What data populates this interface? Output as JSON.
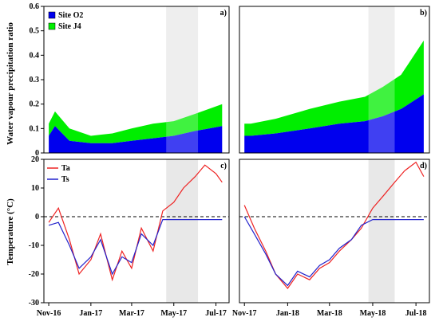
{
  "colors": {
    "site_o2": "#0000ee",
    "site_j4": "#00ee00",
    "ta": "#ee2222",
    "ts": "#2222cc",
    "shade": "#e8e8e8"
  },
  "ylabel_top": "Water vapour precipitation ratio",
  "ylabel_bottom": "Temperature (°C)",
  "chart_data": [
    {
      "panel": "a)",
      "type": "area",
      "stacked": true,
      "ylim": [
        0,
        0.6
      ],
      "yticks": [
        0,
        0.1,
        0.2,
        0.3,
        0.4,
        0.5,
        0.6
      ],
      "x_dates": [
        "2016-11-01",
        "2016-11-10",
        "2016-12-01",
        "2017-01-01",
        "2017-02-01",
        "2017-03-01",
        "2017-04-01",
        "2017-05-01",
        "2017-06-01",
        "2017-07-10"
      ],
      "series": [
        {
          "name": "Site O2",
          "values": [
            0.07,
            0.11,
            0.05,
            0.04,
            0.04,
            0.05,
            0.06,
            0.07,
            0.09,
            0.11
          ]
        },
        {
          "name": "Site J4",
          "values": [
            0.05,
            0.06,
            0.05,
            0.03,
            0.04,
            0.05,
            0.06,
            0.06,
            0.07,
            0.09
          ]
        }
      ],
      "legend": [
        "Site O2",
        "Site J4"
      ],
      "legend_position": "top-left",
      "shade_dates": [
        "2017-04-20",
        "2017-06-05"
      ]
    },
    {
      "panel": "b)",
      "type": "area",
      "stacked": true,
      "ylim": [
        0,
        0.6
      ],
      "x_dates": [
        "2017-11-01",
        "2017-11-10",
        "2017-12-15",
        "2018-02-01",
        "2018-03-15",
        "2018-04-20",
        "2018-05-15",
        "2018-06-10",
        "2018-07-12"
      ],
      "series": [
        {
          "name": "Site O2",
          "values": [
            0.07,
            0.07,
            0.08,
            0.1,
            0.12,
            0.13,
            0.15,
            0.18,
            0.24
          ]
        },
        {
          "name": "Site J4",
          "values": [
            0.05,
            0.05,
            0.06,
            0.08,
            0.09,
            0.1,
            0.12,
            0.14,
            0.22
          ]
        }
      ],
      "shade_dates": [
        "2018-04-25",
        "2018-06-01"
      ]
    },
    {
      "panel": "c)",
      "type": "line",
      "ylim": [
        -30,
        20
      ],
      "yticks": [
        -30,
        -20,
        -10,
        0,
        10,
        20
      ],
      "x_ticks": [
        "Nov-16",
        "Jan-17",
        "Mar-17",
        "May-17",
        "Jul-17"
      ],
      "x_tick_dates": [
        "2016-11-01",
        "2017-01-01",
        "2017-03-01",
        "2017-05-01",
        "2017-07-01"
      ],
      "x_dates": [
        "2016-11-01",
        "2016-11-15",
        "2016-12-01",
        "2016-12-15",
        "2017-01-01",
        "2017-01-15",
        "2017-02-01",
        "2017-02-15",
        "2017-03-01",
        "2017-03-15",
        "2017-04-01",
        "2017-04-15",
        "2017-05-01",
        "2017-05-15",
        "2017-06-01",
        "2017-06-15",
        "2017-07-01",
        "2017-07-10"
      ],
      "series": [
        {
          "name": "Ta",
          "values": [
            -2,
            3,
            -8,
            -20,
            -15,
            -6,
            -22,
            -12,
            -18,
            -4,
            -12,
            2,
            5,
            10,
            14,
            18,
            15,
            12
          ]
        },
        {
          "name": "Ts",
          "values": [
            -3,
            -2,
            -10,
            -18,
            -14,
            -8,
            -20,
            -14,
            -16,
            -6,
            -10,
            -1,
            -1,
            -1,
            -1,
            -1,
            -1,
            -1
          ]
        }
      ],
      "legend": [
        "Ta",
        "Ts"
      ],
      "legend_position": "top-left",
      "zero_line": true,
      "shade_dates": [
        "2017-04-20",
        "2017-06-05"
      ]
    },
    {
      "panel": "d)",
      "type": "line",
      "ylim": [
        -30,
        20
      ],
      "x_ticks": [
        "Nov-17",
        "Jan-18",
        "Mar-18",
        "May-18",
        "Jul-18"
      ],
      "x_tick_dates": [
        "2017-11-01",
        "2018-01-01",
        "2018-03-01",
        "2018-05-01",
        "2018-07-01"
      ],
      "x_dates": [
        "2017-11-01",
        "2017-11-15",
        "2017-12-01",
        "2017-12-15",
        "2018-01-01",
        "2018-01-15",
        "2018-02-01",
        "2018-02-15",
        "2018-03-01",
        "2018-03-15",
        "2018-04-01",
        "2018-04-15",
        "2018-05-01",
        "2018-05-15",
        "2018-06-01",
        "2018-06-15",
        "2018-07-01",
        "2018-07-12"
      ],
      "series": [
        {
          "name": "Ta",
          "values": [
            4,
            -4,
            -12,
            -20,
            -25,
            -20,
            -22,
            -18,
            -16,
            -12,
            -8,
            -4,
            3,
            7,
            12,
            16,
            19,
            14
          ]
        },
        {
          "name": "Ts",
          "values": [
            0,
            -6,
            -13,
            -20,
            -24,
            -19,
            -21,
            -17,
            -15,
            -11,
            -8,
            -3,
            -1,
            -1,
            -1,
            -1,
            -1,
            -1
          ]
        }
      ],
      "zero_line": true,
      "shade_dates": [
        "2018-04-25",
        "2018-06-01"
      ]
    }
  ]
}
